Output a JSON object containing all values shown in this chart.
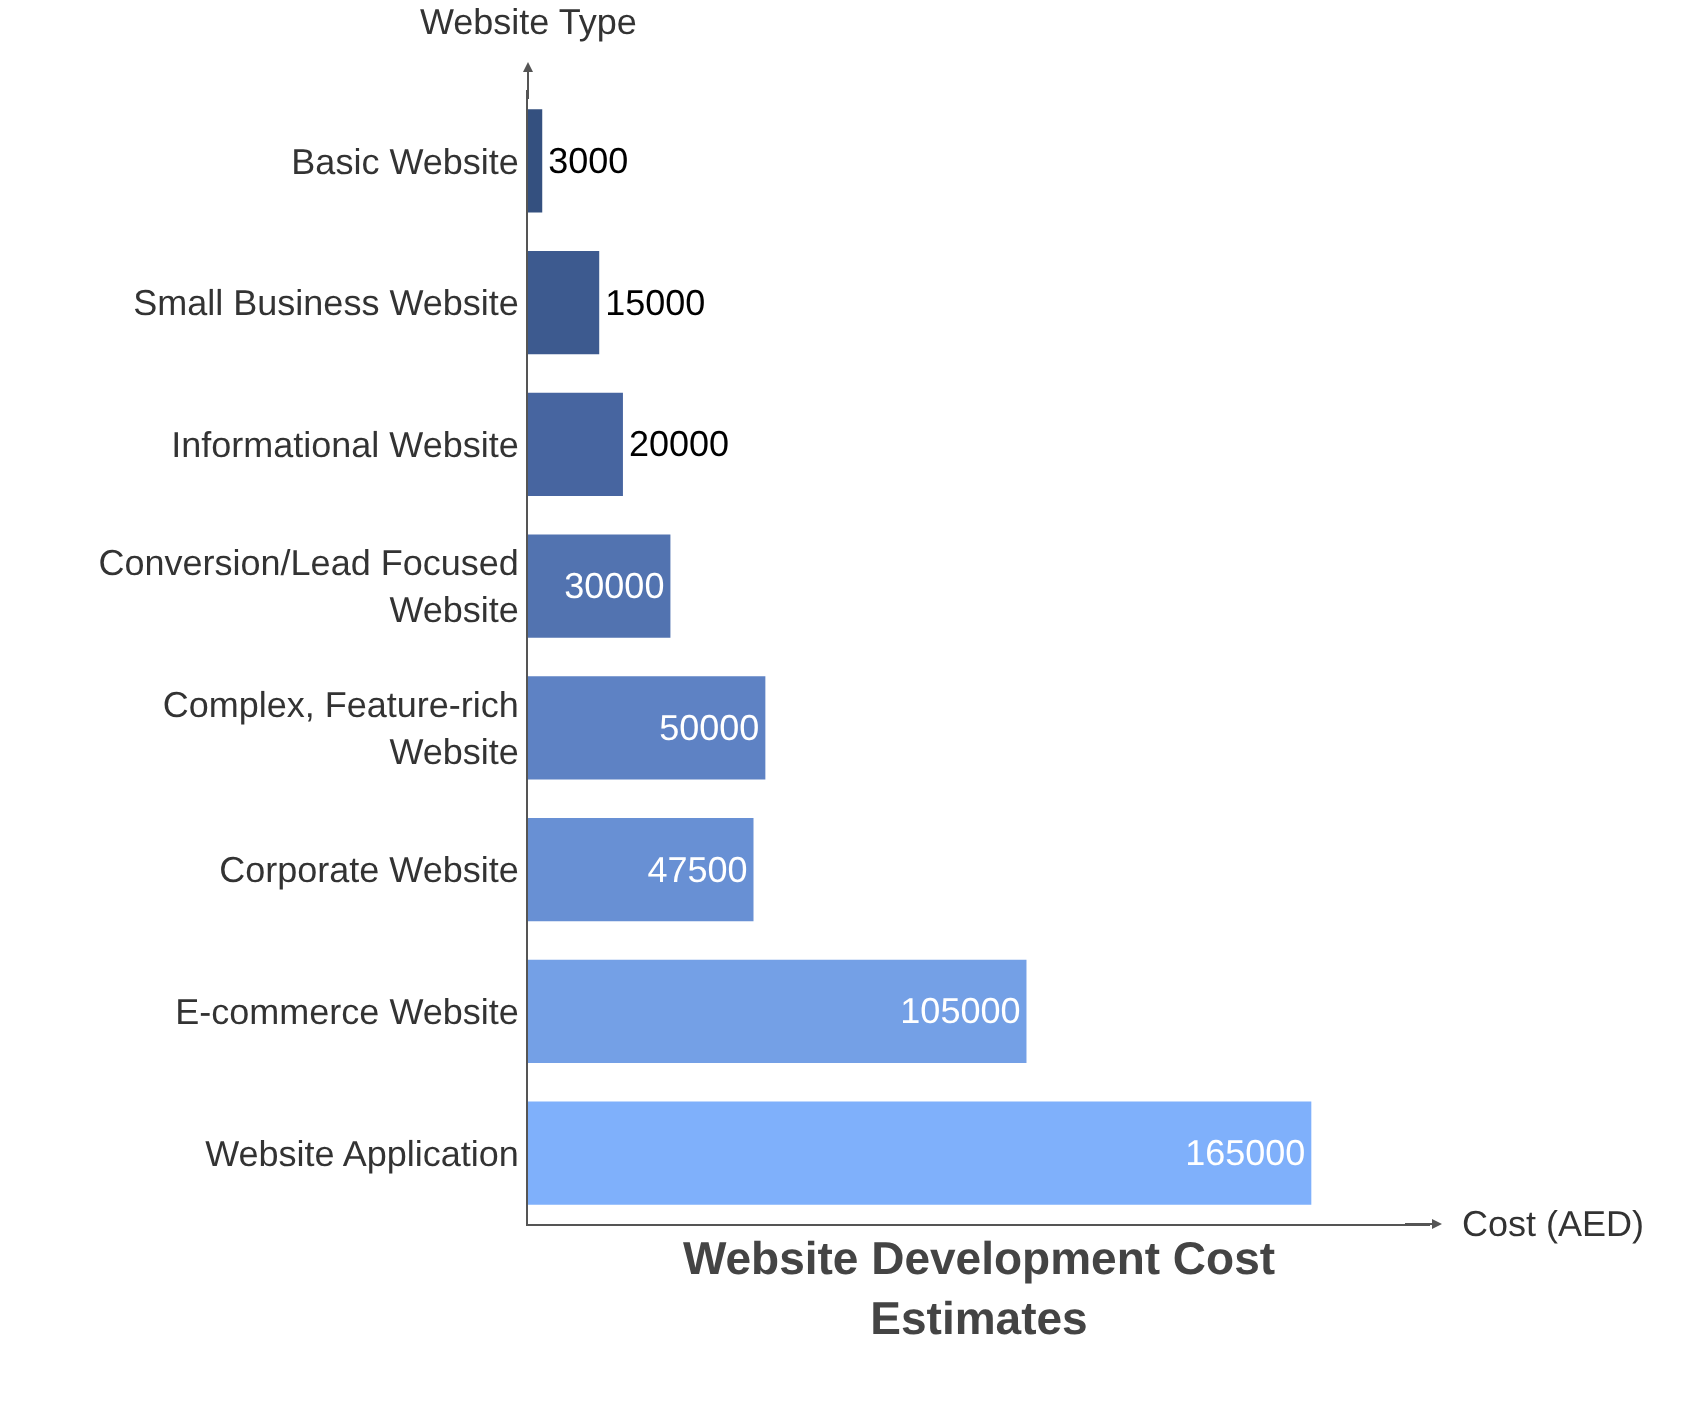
{
  "chart_data": {
    "type": "bar",
    "orientation": "horizontal",
    "title": "Website Development Cost Estimates",
    "xlabel": "Cost (AED)",
    "ylabel": "Website Type",
    "categories": [
      "Basic Website",
      "Small Business Website",
      "Informational Website",
      "Conversion/Lead Focused Website",
      "Complex, Feature-rich Website",
      "Corporate Website",
      "E-commerce Website",
      "Website Application"
    ],
    "values": [
      3000,
      15000,
      20000,
      30000,
      50000,
      47500,
      105000,
      165000
    ],
    "colors": [
      "#34507f",
      "#3d5a8f",
      "#4765a0",
      "#5273b0",
      "#5e82c4",
      "#6890d4",
      "#74a0e6",
      "#7fb0fb"
    ],
    "xlim": [
      0,
      190000
    ],
    "data_labels": true,
    "tick_labels": "y"
  }
}
